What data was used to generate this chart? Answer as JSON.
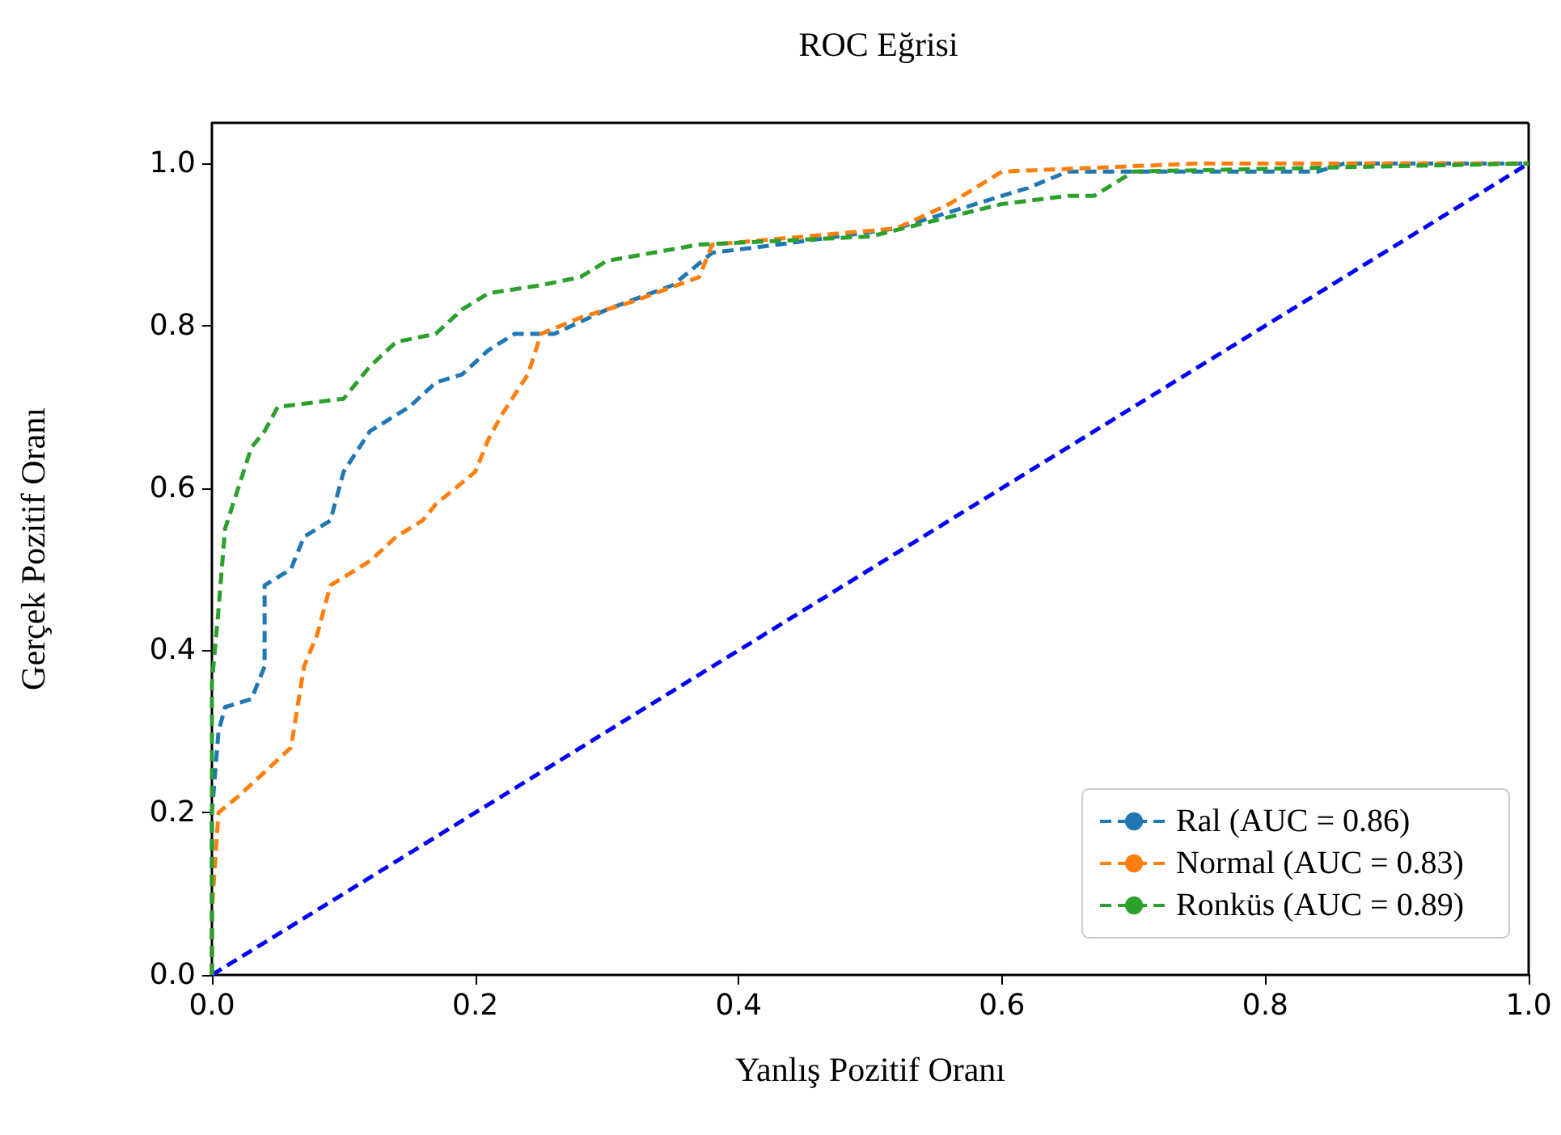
{
  "chart_data": {
    "type": "line",
    "title": "ROC Eğrisi",
    "xlabel": "Yanlış Pozitif Oranı",
    "ylabel": "Gerçek Pozitif Oranı",
    "xlim": [
      0,
      1
    ],
    "ylim": [
      0,
      1.05
    ],
    "xticks": [
      {
        "value": 0,
        "label": "0.0"
      },
      {
        "value": 0.2,
        "label": "0.2"
      },
      {
        "value": 0.4,
        "label": "0.4"
      },
      {
        "value": 0.6,
        "label": "0.6"
      },
      {
        "value": 0.8,
        "label": "0.8"
      },
      {
        "value": 1,
        "label": "1.0"
      }
    ],
    "yticks": [
      {
        "value": 0,
        "label": "0.0"
      },
      {
        "value": 0.2,
        "label": "0.2"
      },
      {
        "value": 0.4,
        "label": "0.4"
      },
      {
        "value": 0.6,
        "label": "0.6"
      },
      {
        "value": 0.8,
        "label": "0.8"
      },
      {
        "value": 1,
        "label": "1.0"
      }
    ],
    "grid": false,
    "legend": "bottom right",
    "marker": "none",
    "line_style": "dashed",
    "series": [
      {
        "name": "Ral (AUC = 0.86)",
        "color": "#1f77b4",
        "x": [
          0,
          0,
          0.005,
          0.01,
          0.03,
          0.04,
          0.04,
          0.06,
          0.07,
          0.09,
          0.1,
          0.12,
          0.15,
          0.17,
          0.19,
          0.21,
          0.23,
          0.26,
          0.3,
          0.35,
          0.38,
          0.43,
          0.52,
          0.58,
          0.62,
          0.65,
          0.84,
          0.86,
          1
        ],
        "values": [
          0,
          0.2,
          0.3,
          0.33,
          0.34,
          0.38,
          0.48,
          0.5,
          0.54,
          0.56,
          0.62,
          0.67,
          0.7,
          0.73,
          0.74,
          0.77,
          0.79,
          0.79,
          0.82,
          0.85,
          0.89,
          0.9,
          0.92,
          0.95,
          0.97,
          0.99,
          0.99,
          1,
          1
        ]
      },
      {
        "name": "Normal (AUC = 0.83)",
        "color": "#ff7f0e",
        "x": [
          0,
          0,
          0.005,
          0.02,
          0.04,
          0.06,
          0.07,
          0.08,
          0.09,
          0.12,
          0.14,
          0.16,
          0.17,
          0.2,
          0.21,
          0.22,
          0.24,
          0.25,
          0.28,
          0.32,
          0.37,
          0.38,
          0.45,
          0.52,
          0.56,
          0.58,
          0.6,
          0.75,
          1
        ],
        "values": [
          0,
          0.08,
          0.2,
          0.22,
          0.25,
          0.28,
          0.38,
          0.42,
          0.48,
          0.51,
          0.54,
          0.56,
          0.58,
          0.62,
          0.66,
          0.69,
          0.74,
          0.79,
          0.81,
          0.83,
          0.86,
          0.9,
          0.91,
          0.92,
          0.95,
          0.97,
          0.99,
          1,
          1
        ]
      },
      {
        "name": "Ronküs (AUC = 0.89)",
        "color": "#2ca02c",
        "x": [
          0,
          0,
          0.005,
          0.01,
          0.02,
          0.03,
          0.04,
          0.05,
          0.1,
          0.12,
          0.14,
          0.17,
          0.19,
          0.21,
          0.25,
          0.28,
          0.3,
          0.37,
          0.5,
          0.55,
          0.6,
          0.65,
          0.67,
          0.7,
          1
        ],
        "values": [
          0,
          0.36,
          0.45,
          0.55,
          0.6,
          0.65,
          0.67,
          0.7,
          0.71,
          0.75,
          0.78,
          0.79,
          0.82,
          0.84,
          0.85,
          0.86,
          0.88,
          0.9,
          0.91,
          0.93,
          0.95,
          0.96,
          0.96,
          0.99,
          1
        ]
      },
      {
        "color": "#0000ff",
        "x": [
          0,
          1
        ],
        "values": [
          0,
          1
        ]
      }
    ]
  }
}
